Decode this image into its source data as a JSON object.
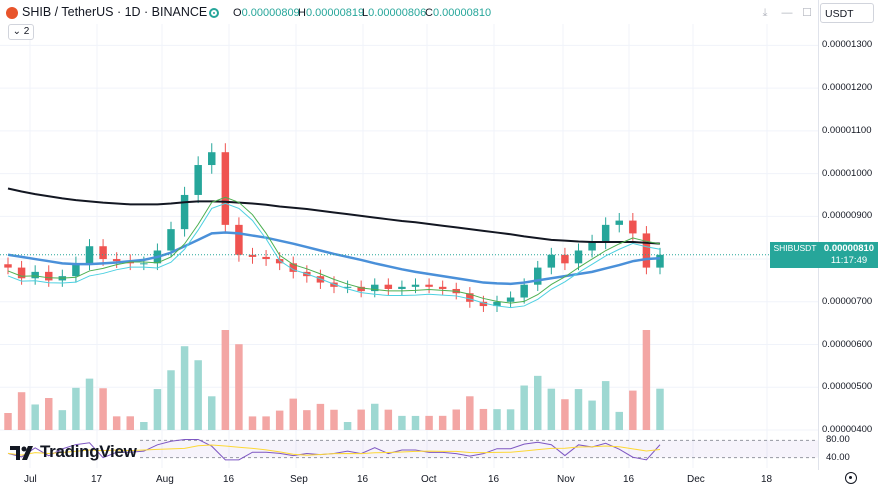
{
  "header": {
    "symbol_title": "SHIB / TetherUS · 1D · BINANCE",
    "ohlc": [
      {
        "key": "O",
        "value": "0.00000809"
      },
      {
        "key": "H",
        "value": "0.00000819"
      },
      {
        "key": "L",
        "value": "0.00000806"
      },
      {
        "key": "C",
        "value": "0.00000810"
      }
    ],
    "indicator_toggle": "⌄ 2",
    "currency": "USDT",
    "icons": [
      "live-status-icon",
      "scroll-down-icon",
      "minimize-icon",
      "maximize-icon"
    ]
  },
  "price_axis": {
    "ticks": [
      "0.00001300",
      "0.00001200",
      "0.00001100",
      "0.00001000",
      "0.00000900",
      "0.00000800",
      "0.00000700",
      "0.00000600",
      "0.00000500",
      "0.00000400"
    ],
    "last_symbol": "SHIBUSDT",
    "last_price": "0.00000810",
    "countdown": "11:17:49"
  },
  "rsi_axis": {
    "ticks": [
      "80.00",
      "40.00"
    ]
  },
  "time_axis": {
    "ticks": [
      "Jul",
      "17",
      "Aug",
      "16",
      "Sep",
      "16",
      "Oct",
      "16",
      "Nov",
      "16",
      "Dec",
      "18"
    ]
  },
  "brand": {
    "name": "TradingView"
  },
  "colors": {
    "up": "#26a69a",
    "down": "#ef5350",
    "ma_long": "#131722",
    "ma_mid": "#4a90d9",
    "ma_short": "#4caf50",
    "ma_fast": "#4dd0e1",
    "rsi_line": "#7e57c2",
    "rsi_ma": "#fdd835"
  },
  "chart_data": {
    "type": "candlestick",
    "symbol": "SHIBUSDT",
    "interval": "1D",
    "ylim": [
      4e-06,
      1.35e-05
    ],
    "x": [
      "Jun 30",
      "Jul 3",
      "Jul 6",
      "Jul 9",
      "Jul 12",
      "Jul 15",
      "Jul 18",
      "Jul 21",
      "Jul 24",
      "Jul 27",
      "Jul 30",
      "Aug 2",
      "Aug 5",
      "Aug 8",
      "Aug 11",
      "Aug 14",
      "Aug 17",
      "Aug 20",
      "Aug 23",
      "Aug 26",
      "Aug 29",
      "Sep 1",
      "Sep 4",
      "Sep 7",
      "Sep 10",
      "Sep 13",
      "Sep 16",
      "Sep 19",
      "Sep 22",
      "Sep 25",
      "Sep 28",
      "Oct 1",
      "Oct 4",
      "Oct 7",
      "Oct 10",
      "Oct 13",
      "Oct 16",
      "Oct 19",
      "Oct 22",
      "Oct 25",
      "Oct 28",
      "Oct 31",
      "Nov 3",
      "Nov 6",
      "Nov 9",
      "Nov 12",
      "Nov 15",
      "Nov 18",
      "Nov 21"
    ],
    "close": [
      7.8e-06,
      7.55e-06,
      7.7e-06,
      7.5e-06,
      7.6e-06,
      7.9e-06,
      8.3e-06,
      8e-06,
      7.95e-06,
      7.9e-06,
      7.9e-06,
      8.2e-06,
      8.7e-06,
      9.5e-06,
      1.02e-05,
      1.05e-05,
      8.8e-06,
      8.1e-06,
      8.05e-06,
      8e-06,
      7.9e-06,
      7.7e-06,
      7.6e-06,
      7.45e-06,
      7.35e-06,
      7.35e-06,
      7.25e-06,
      7.4e-06,
      7.3e-06,
      7.35e-06,
      7.4e-06,
      7.35e-06,
      7.3e-06,
      7.2e-06,
      7e-06,
      6.9e-06,
      7e-06,
      7.1e-06,
      7.4e-06,
      7.8e-06,
      8.1e-06,
      7.9e-06,
      8.2e-06,
      8.4e-06,
      8.8e-06,
      8.9e-06,
      8.6e-06,
      7.8e-06,
      8.1e-06
    ],
    "series": [
      {
        "name": "MA long",
        "values": [
          9.65e-06,
          9.58e-06,
          9.52e-06,
          9.47e-06,
          9.42e-06,
          9.38e-06,
          9.35e-06,
          9.32e-06,
          9.3e-06,
          9.28e-06,
          9.28e-06,
          9.28e-06,
          9.3e-06,
          9.33e-06,
          9.35e-06,
          9.35e-06,
          9.34e-06,
          9.32e-06,
          9.3e-06,
          9.27e-06,
          9.23e-06,
          9.2e-06,
          9.17e-06,
          9.13e-06,
          9.09e-06,
          9.05e-06,
          9.01e-06,
          8.97e-06,
          8.93e-06,
          8.89e-06,
          8.86e-06,
          8.82e-06,
          8.78e-06,
          8.74e-06,
          8.7e-06,
          8.66e-06,
          8.62e-06,
          8.58e-06,
          8.53e-06,
          8.49e-06,
          8.45e-06,
          8.43e-06,
          8.41e-06,
          8.4e-06,
          8.4e-06,
          8.4e-06,
          8.4e-06,
          8.38e-06,
          8.36e-06
        ]
      },
      {
        "name": "MA mid",
        "values": [
          8.1e-06,
          8.05e-06,
          8e-06,
          7.95e-06,
          7.9e-06,
          7.88e-06,
          7.88e-06,
          7.9e-06,
          7.92e-06,
          7.95e-06,
          7.98e-06,
          8.05e-06,
          8.15e-06,
          8.3e-06,
          8.45e-06,
          8.6e-06,
          8.62e-06,
          8.6e-06,
          8.55e-06,
          8.5e-06,
          8.43e-06,
          8.36e-06,
          8.28e-06,
          8.2e-06,
          8.12e-06,
          8.05e-06,
          7.98e-06,
          7.9e-06,
          7.83e-06,
          7.76e-06,
          7.7e-06,
          7.65e-06,
          7.6e-06,
          7.55e-06,
          7.5e-06,
          7.45e-06,
          7.43e-06,
          7.42e-06,
          7.45e-06,
          7.5e-06,
          7.55e-06,
          7.6e-06,
          7.65e-06,
          7.7e-06,
          7.78e-06,
          7.86e-06,
          7.95e-06,
          8e-06,
          8.02e-06
        ]
      }
    ],
    "volume_style": "histogram",
    "rsi": {
      "levels": [
        80.0,
        40.0
      ]
    }
  }
}
